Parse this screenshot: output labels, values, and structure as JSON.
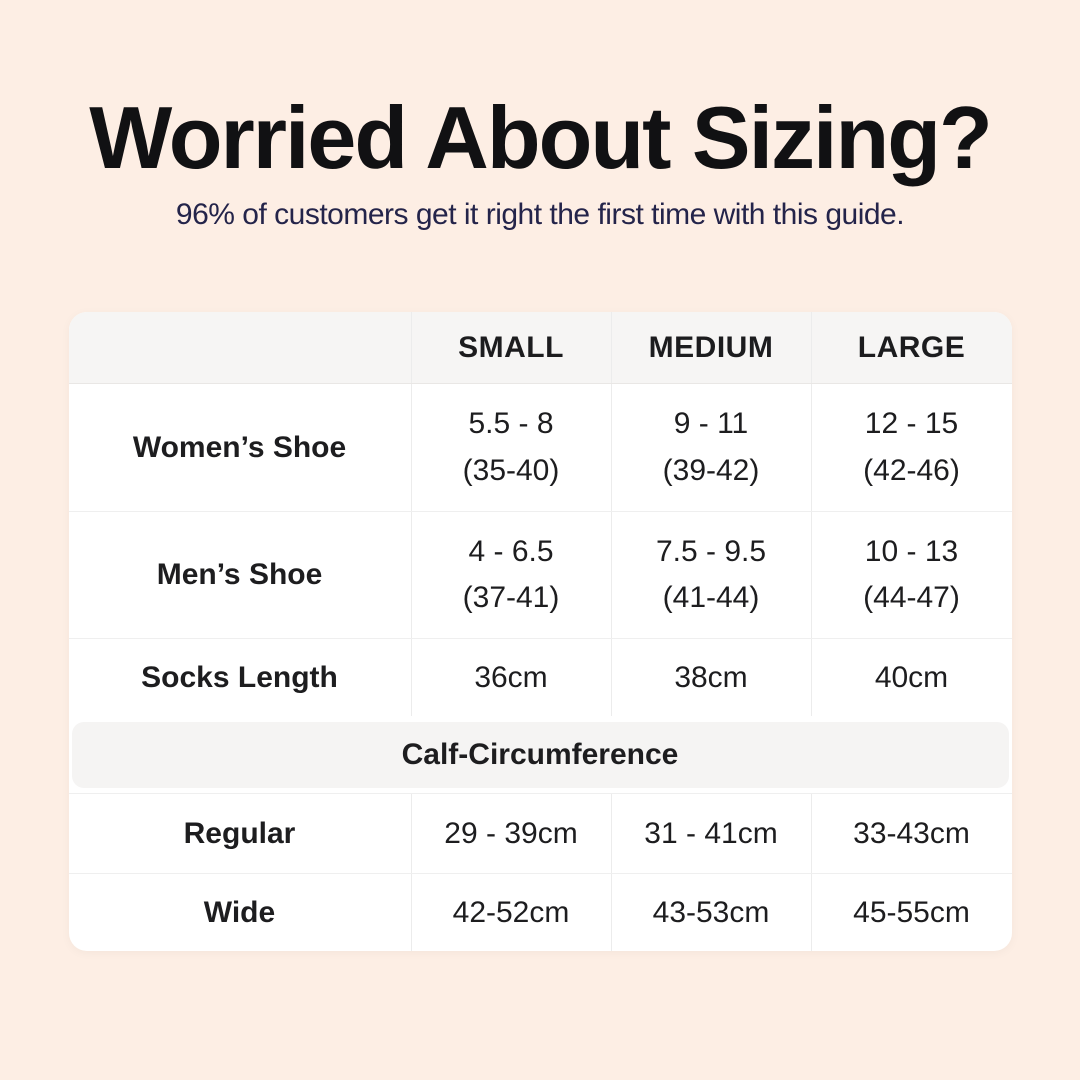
{
  "header": {
    "title": "Worried About Sizing?",
    "subtitle": "96% of customers get it right the first time with this guide."
  },
  "table": {
    "corner": "",
    "columns": [
      "SMALL",
      "MEDIUM",
      "LARGE"
    ],
    "shoe_rows": [
      {
        "label": "Women’s Shoe",
        "small": [
          "5.5 - 8",
          "(35-40)"
        ],
        "medium": [
          "9 - 11",
          "(39-42)"
        ],
        "large": [
          "12 - 15",
          "(42-46)"
        ]
      },
      {
        "label": "Men’s Shoe",
        "small": [
          "4 - 6.5",
          "(37-41)"
        ],
        "medium": [
          "7.5 - 9.5",
          "(41-44)"
        ],
        "large": [
          "10 - 13",
          "(44-47)"
        ]
      }
    ],
    "socks_row": {
      "label": "Socks Length",
      "small": "36cm",
      "medium": "38cm",
      "large": "40cm"
    },
    "section_header": "Calf-Circumference",
    "calf_rows": [
      {
        "label": "Regular",
        "small": "29 - 39cm",
        "medium": "31 - 41cm",
        "large": "33-43cm"
      },
      {
        "label": "Wide",
        "small": "42-52cm",
        "medium": "43-53cm",
        "large": "45-55cm"
      }
    ]
  },
  "colors": {
    "page_background": "#fdeee4",
    "card_background": "#ffffff",
    "header_row_background": "#f6f5f4",
    "section_bar_background": "#f5f4f3",
    "title_text": "#111113",
    "subtitle_text": "#24244a",
    "table_text": "#1d1d1f",
    "divider": "#ececec"
  }
}
